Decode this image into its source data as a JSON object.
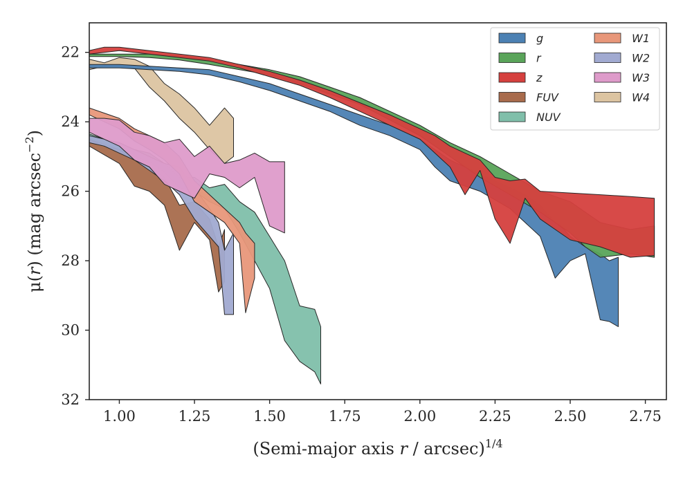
{
  "chart_data": {
    "type": "area",
    "title": "",
    "xlabel": {
      "main": "(Semi-major axis ",
      "var": "r",
      "unit": " / arcsec)",
      "sup": "1/4"
    },
    "ylabel": {
      "pre": "μ(",
      "var": "r",
      "post": ") (mag arcsec",
      "sup": "−2",
      "close": ")"
    },
    "xlim": [
      0.9,
      2.82
    ],
    "ylim": [
      32,
      21.15
    ],
    "y_inverted": true,
    "xticks": [
      {
        "v": 1.0,
        "label": "1.00"
      },
      {
        "v": 1.25,
        "label": "1.25"
      },
      {
        "v": 1.5,
        "label": "1.50"
      },
      {
        "v": 1.75,
        "label": "1.75"
      },
      {
        "v": 2.0,
        "label": "2.00"
      },
      {
        "v": 2.25,
        "label": "2.25"
      },
      {
        "v": 2.5,
        "label": "2.50"
      },
      {
        "v": 2.75,
        "label": "2.75"
      }
    ],
    "yticks": [
      {
        "v": 22,
        "label": "22"
      },
      {
        "v": 24,
        "label": "24"
      },
      {
        "v": 26,
        "label": "26"
      },
      {
        "v": 28,
        "label": "28"
      },
      {
        "v": 30,
        "label": "30"
      },
      {
        "v": 32,
        "label": "32"
      }
    ],
    "grid": false,
    "legend": {
      "placement": "top-right",
      "columns": 2
    },
    "series": [
      {
        "name": "W4",
        "color": "#dcc4a1",
        "x": [
          0.9,
          0.95,
          1.0,
          1.05,
          1.1,
          1.15,
          1.2,
          1.25,
          1.3,
          1.35,
          1.38
        ],
        "y_upper": [
          22.2,
          22.3,
          22.15,
          22.2,
          22.4,
          22.9,
          23.2,
          23.6,
          24.1,
          23.6,
          23.9
        ],
        "y_lower": [
          22.5,
          22.4,
          22.4,
          22.45,
          23.0,
          23.4,
          23.9,
          24.3,
          24.8,
          25.2,
          25.0
        ]
      },
      {
        "name": "FUV",
        "color": "#a86b4c",
        "x": [
          0.9,
          0.95,
          1.0,
          1.05,
          1.1,
          1.15,
          1.2,
          1.25,
          1.3,
          1.33,
          1.35
        ],
        "y_upper": [
          24.5,
          24.7,
          24.8,
          25.1,
          25.3,
          25.6,
          26.4,
          26.3,
          26.8,
          27.6,
          27.1
        ],
        "y_lower": [
          24.7,
          24.95,
          25.2,
          25.85,
          26.0,
          26.4,
          27.7,
          26.9,
          27.4,
          28.9,
          28.6
        ]
      },
      {
        "name": "NUV",
        "color": "#80bfaa",
        "x": [
          0.9,
          0.95,
          1.0,
          1.05,
          1.1,
          1.15,
          1.2,
          1.25,
          1.3,
          1.35,
          1.4,
          1.45,
          1.5,
          1.55,
          1.6,
          1.65,
          1.67
        ],
        "y_upper": [
          24.35,
          24.5,
          24.65,
          24.8,
          24.9,
          25.2,
          25.6,
          25.6,
          25.9,
          25.8,
          26.3,
          26.6,
          27.3,
          28.0,
          29.3,
          29.4,
          29.9
        ],
        "y_lower": [
          24.5,
          24.65,
          24.8,
          25.0,
          25.15,
          25.45,
          25.9,
          26.0,
          26.3,
          26.5,
          27.2,
          28.0,
          28.8,
          30.3,
          30.9,
          31.2,
          31.55
        ]
      },
      {
        "name": "W2",
        "color": "#a1aad1",
        "x": [
          0.9,
          0.95,
          1.0,
          1.05,
          1.1,
          1.15,
          1.2,
          1.25,
          1.3,
          1.33,
          1.35,
          1.38
        ],
        "y_upper": [
          24.4,
          24.5,
          24.6,
          24.8,
          25.0,
          25.2,
          25.3,
          25.9,
          26.5,
          26.9,
          27.7,
          27.2
        ],
        "y_lower": [
          24.6,
          24.7,
          24.9,
          25.1,
          25.4,
          25.7,
          26.1,
          26.8,
          27.3,
          27.6,
          29.55,
          29.55
        ]
      },
      {
        "name": "W1",
        "color": "#e8977a",
        "x": [
          0.9,
          0.95,
          1.0,
          1.05,
          1.1,
          1.15,
          1.2,
          1.25,
          1.3,
          1.35,
          1.4,
          1.42,
          1.45
        ],
        "y_upper": [
          23.6,
          23.75,
          23.9,
          24.2,
          24.4,
          24.6,
          25.0,
          25.7,
          26.1,
          26.5,
          26.9,
          27.2,
          27.5
        ],
        "y_lower": [
          23.8,
          24.0,
          24.2,
          24.55,
          24.8,
          25.1,
          25.5,
          26.3,
          26.6,
          26.9,
          27.5,
          29.5,
          28.5
        ]
      },
      {
        "name": "W3",
        "color": "#de9bca",
        "x": [
          0.9,
          0.95,
          1.0,
          1.05,
          1.1,
          1.15,
          1.2,
          1.25,
          1.3,
          1.35,
          1.4,
          1.45,
          1.5,
          1.55
        ],
        "y_upper": [
          23.9,
          23.9,
          23.95,
          24.3,
          24.4,
          24.6,
          24.5,
          25.0,
          24.7,
          25.2,
          25.1,
          24.9,
          25.15,
          25.15
        ],
        "y_lower": [
          24.3,
          24.5,
          24.7,
          25.1,
          25.3,
          25.8,
          26.0,
          26.2,
          25.5,
          25.6,
          25.9,
          25.6,
          27.0,
          27.2
        ]
      },
      {
        "name": "g",
        "color": "#4c81b3",
        "x": [
          0.9,
          1.0,
          1.1,
          1.2,
          1.3,
          1.4,
          1.5,
          1.6,
          1.7,
          1.8,
          1.9,
          2.0,
          2.05,
          2.1,
          2.2,
          2.3,
          2.35,
          2.4,
          2.45,
          2.48,
          2.5,
          2.55,
          2.6,
          2.63,
          2.66
        ],
        "y_upper": [
          22.35,
          22.35,
          22.4,
          22.45,
          22.5,
          22.7,
          22.9,
          23.2,
          23.5,
          23.8,
          24.1,
          24.5,
          24.8,
          25.1,
          25.5,
          25.9,
          26.1,
          26.4,
          26.9,
          27.1,
          27.3,
          27.6,
          27.8,
          28.0,
          27.9
        ],
        "y_lower": [
          22.45,
          22.45,
          22.5,
          22.55,
          22.65,
          22.85,
          23.1,
          23.4,
          23.7,
          24.1,
          24.4,
          24.8,
          25.3,
          25.7,
          26.0,
          26.5,
          26.9,
          27.3,
          28.5,
          28.2,
          28.0,
          27.8,
          29.7,
          29.75,
          29.9
        ]
      },
      {
        "name": "r",
        "color": "#5aa45a",
        "x": [
          0.9,
          1.0,
          1.1,
          1.2,
          1.3,
          1.4,
          1.5,
          1.6,
          1.7,
          1.8,
          1.9,
          2.0,
          2.1,
          2.2,
          2.3,
          2.4,
          2.5,
          2.55,
          2.6,
          2.7,
          2.78
        ],
        "y_upper": [
          22.05,
          22.05,
          22.05,
          22.1,
          22.2,
          22.35,
          22.5,
          22.7,
          23.0,
          23.3,
          23.7,
          24.1,
          24.6,
          25.0,
          25.5,
          26.0,
          26.3,
          26.6,
          26.9,
          27.1,
          27.0
        ],
        "y_lower": [
          22.12,
          22.12,
          22.15,
          22.22,
          22.35,
          22.5,
          22.65,
          22.9,
          23.2,
          23.5,
          23.95,
          24.4,
          25.0,
          25.6,
          26.1,
          26.6,
          27.2,
          27.6,
          27.9,
          27.8,
          27.9
        ]
      },
      {
        "name": "z",
        "color": "#d5403e",
        "x": [
          0.9,
          0.95,
          1.0,
          1.05,
          1.1,
          1.2,
          1.3,
          1.4,
          1.5,
          1.6,
          1.7,
          1.8,
          1.9,
          2.0,
          2.05,
          2.1,
          2.15,
          2.2,
          2.25,
          2.3,
          2.35,
          2.4,
          2.5,
          2.6,
          2.7,
          2.78
        ],
        "y_upper": [
          21.95,
          21.85,
          21.85,
          21.9,
          21.95,
          22.05,
          22.15,
          22.35,
          22.55,
          22.8,
          23.1,
          23.45,
          23.8,
          24.2,
          24.4,
          24.7,
          24.9,
          25.1,
          25.6,
          25.7,
          25.65,
          26.0,
          26.05,
          26.1,
          26.15,
          26.2
        ],
        "y_lower": [
          22.05,
          22.0,
          21.95,
          22.0,
          22.05,
          22.15,
          22.25,
          22.45,
          22.7,
          22.95,
          23.3,
          23.7,
          24.1,
          24.5,
          24.9,
          25.3,
          26.1,
          25.4,
          26.8,
          27.5,
          26.2,
          26.8,
          27.4,
          27.6,
          27.9,
          27.85
        ]
      }
    ],
    "legend_items": [
      {
        "name": "g",
        "color": "#4c81b3"
      },
      {
        "name": "r",
        "color": "#5aa45a"
      },
      {
        "name": "z",
        "color": "#d5403e"
      },
      {
        "name": "FUV",
        "color": "#a86b4c"
      },
      {
        "name": "NUV",
        "color": "#80bfaa"
      },
      {
        "name": "W1",
        "color": "#e8977a"
      },
      {
        "name": "W2",
        "color": "#a1aad1"
      },
      {
        "name": "W3",
        "color": "#de9bca"
      },
      {
        "name": "W4",
        "color": "#dcc4a1"
      }
    ]
  }
}
